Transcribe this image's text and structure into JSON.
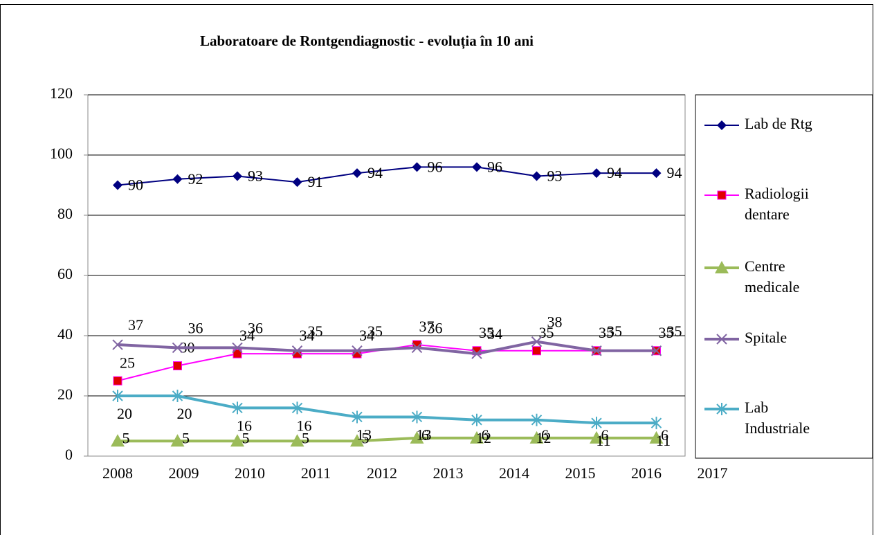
{
  "chart_data": {
    "type": "line",
    "title": "Laboratoare de Rontgendiagnostic - evoluția în 10 ani",
    "categories": [
      "2008",
      "2009",
      "2010",
      "2011",
      "2012",
      "2013",
      "2014",
      "2015",
      "2016",
      "2017"
    ],
    "ylim": [
      0,
      120
    ],
    "yticks": [
      0,
      20,
      40,
      60,
      80,
      100,
      120
    ],
    "grid": true,
    "legend": "right",
    "series": [
      {
        "name": "Lab de Rtg",
        "color": "#000080",
        "marker": "diamond",
        "values": [
          90,
          92,
          93,
          91,
          94,
          96,
          96,
          93,
          94,
          94
        ]
      },
      {
        "name": "Radiologii dentare",
        "color": "#ff00ff",
        "marker": "square",
        "values": [
          25,
          30,
          34,
          34,
          34,
          37,
          35,
          35,
          35,
          35
        ]
      },
      {
        "name": "Centre medicale",
        "color": "#9bbb59",
        "marker": "triangle",
        "values": [
          5,
          5,
          5,
          5,
          5,
          6,
          6,
          6,
          6,
          6
        ]
      },
      {
        "name": "Spitale",
        "color": "#8064a2",
        "marker": "x",
        "values": [
          37,
          36,
          36,
          35,
          35,
          36,
          34,
          38,
          35,
          35
        ]
      },
      {
        "name": "Lab Industriale",
        "color": "#4bacc6",
        "marker": "star",
        "values": [
          20,
          20,
          16,
          16,
          13,
          13,
          12,
          12,
          11,
          11
        ]
      }
    ]
  }
}
